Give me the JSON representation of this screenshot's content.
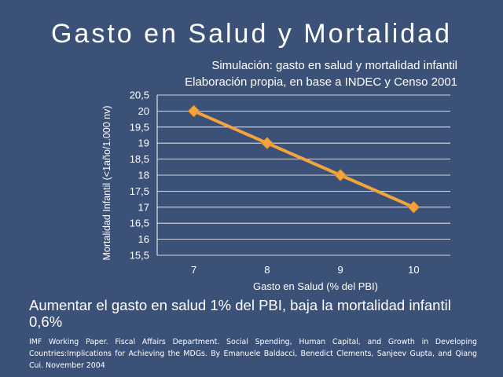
{
  "slide": {
    "title": "Gasto en Salud y Mortalidad",
    "subtitle_lines": [
      "Simulación: gasto en salud y mortalidad infantil",
      "Elaboración propia, en base a INDEC y Censo 2001"
    ],
    "conclusion": "Aumentar el gasto en salud 1% del PBI, baja la mortalidad infantil 0,6%",
    "citation": "IMF Working Paper. Fiscal Affairs Department. Social Spending, Human Capital, and Growth in Developing Countries:Implications for Achieving the MDGs. By Emanuele Baldacci, Benedict Clements, Sanjeev Gupta, and Qiang Cui. November 2004"
  },
  "chart_data": {
    "type": "line",
    "x": [
      7,
      8,
      9,
      10
    ],
    "x_tick_labels": [
      "7",
      "8",
      "9",
      "10"
    ],
    "series": [
      {
        "values": [
          20,
          19,
          18,
          17
        ]
      }
    ],
    "y_tick_labels": [
      "15,5",
      "16",
      "16,5",
      "17",
      "17,5",
      "18",
      "18,5",
      "19",
      "19,5",
      "20",
      "20,5"
    ],
    "ylim": [
      15.5,
      20.5
    ],
    "xlabel": "Gasto en Salud (% del PBI)",
    "ylabel": "Mortalidad Infantil (<1año/1.000 nv)",
    "grid": true,
    "marker": "diamond",
    "colors": {
      "line": "#f3a43c",
      "marker": "#f3a43c",
      "grid": "#ffffff"
    }
  }
}
